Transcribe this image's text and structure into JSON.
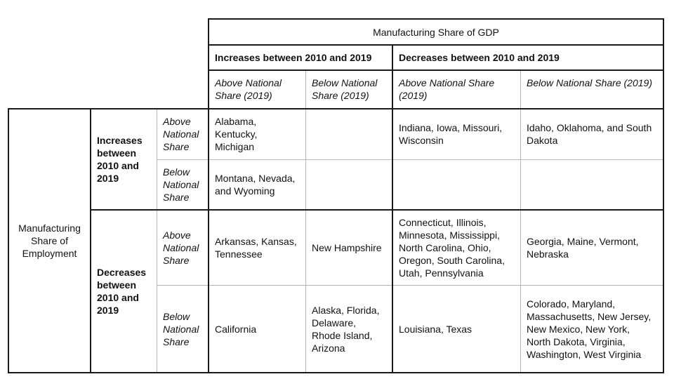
{
  "gdp_header": "Manufacturing Share of GDP",
  "gdp_increase": "Increases between 2010 and 2019",
  "gdp_decrease": "Decreases between 2010 and 2019",
  "sub_headers": {
    "inc_above": "Above National\nShare (2019)",
    "inc_below": "Below National\nShare (2019)",
    "dec_above": "Above National Share\n(2019)",
    "dec_below": "Below National Share (2019)"
  },
  "emp_header": "Manufacturing\nShare of\nEmployment",
  "emp_increase": "Increases\nbetween\n2010 and\n2019",
  "emp_decrease": "Decreases\nbetween\n2010 and\n2019",
  "row_labels": {
    "r1": "Above\nNational\nShare",
    "r2": "Below\nNational\nShare",
    "r3": "Above\nNational\nShare",
    "r4": "Below\nNational\nShare"
  },
  "cells": {
    "r1": [
      "Alabama,\nKentucky,\nMichigan",
      "",
      "Indiana, Iowa, Missouri,\nWisconsin",
      "Idaho, Oklahoma, and South\nDakota"
    ],
    "r2": [
      "Montana, Nevada,\nand Wyoming",
      "",
      "",
      ""
    ],
    "r3": [
      "Arkansas, Kansas,\nTennessee",
      "New Hampshire",
      "Connecticut, Illinois,\nMinnesota, Mississippi,\nNorth Carolina, Ohio,\nOregon, South Carolina,\nUtah, Pennsylvania",
      "Georgia, Maine, Vermont,\nNebraska"
    ],
    "r4": [
      "California",
      "Alaska, Florida,\nDelaware,\nRhode Island,\nArizona",
      "Louisiana, Texas",
      "Colorado, Maryland,\nMassachusetts, New Jersey,\nNew Mexico, New York,\nNorth Dakota, Virginia,\nWashington, West Virginia"
    ]
  }
}
